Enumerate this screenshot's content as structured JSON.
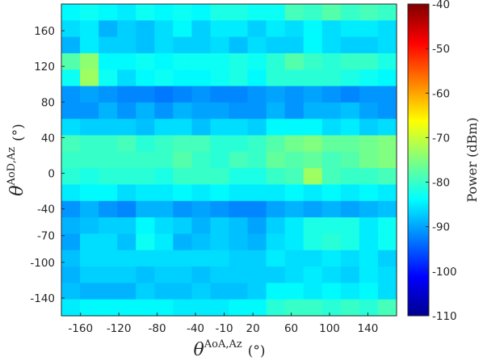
{
  "chart_data": {
    "type": "heatmap",
    "title": "",
    "xlabel": {
      "symbol": "θ",
      "superscript": "AoA,Az",
      "unit": "(°)"
    },
    "ylabel": {
      "symbol": "θ",
      "superscript": "AoD,Az",
      "unit": "(°)"
    },
    "colorbar": {
      "label": "Power (dBm)",
      "range": [
        -110,
        -40
      ],
      "ticks": [
        -40,
        -50,
        -60,
        -70,
        -80,
        -90,
        -100,
        -110
      ],
      "colormap": "jet"
    },
    "xticks": [
      -160,
      -120,
      -80,
      -40,
      -10,
      20,
      60,
      100,
      140
    ],
    "yticks": [
      160,
      120,
      80,
      40,
      0,
      -40,
      -70,
      -100,
      -140
    ],
    "nx": 18,
    "ny": 19,
    "xrange": [
      -180,
      170
    ],
    "yrange": [
      -160,
      190
    ],
    "values": [
      [
        -84,
        -83,
        -84,
        -85,
        -83,
        -84,
        -83,
        -84,
        -82,
        -82,
        -83,
        -83,
        -79,
        -80,
        -78,
        -80,
        -79,
        -80
      ],
      [
        -86,
        -85,
        -89,
        -87,
        -88,
        -86,
        -84,
        -87,
        -85,
        -85,
        -87,
        -85,
        -86,
        -84,
        -86,
        -85,
        -85,
        -86
      ],
      [
        -89,
        -85,
        -87,
        -87,
        -88,
        -86,
        -87,
        -87,
        -86,
        -88,
        -86,
        -87,
        -87,
        -84,
        -86,
        -87,
        -87,
        -86
      ],
      [
        -78,
        -74,
        -84,
        -84,
        -83,
        -84,
        -83,
        -83,
        -83,
        -82,
        -83,
        -81,
        -78,
        -80,
        -81,
        -80,
        -80,
        -82
      ],
      [
        -83,
        -73,
        -83,
        -86,
        -84,
        -83,
        -84,
        -84,
        -83,
        -82,
        -84,
        -81,
        -81,
        -81,
        -81,
        -82,
        -83,
        -84
      ],
      [
        -91,
        -90,
        -91,
        -92,
        -92,
        -93,
        -92,
        -91,
        -92,
        -92,
        -91,
        -90,
        -91,
        -90,
        -91,
        -92,
        -91,
        -91
      ],
      [
        -91,
        -91,
        -89,
        -91,
        -89,
        -91,
        -89,
        -90,
        -90,
        -91,
        -91,
        -89,
        -91,
        -89,
        -89,
        -88,
        -90,
        -91
      ],
      [
        -86,
        -87,
        -87,
        -87,
        -88,
        -86,
        -86,
        -88,
        -86,
        -86,
        -87,
        -84,
        -84,
        -84,
        -86,
        -85,
        -87,
        -86
      ],
      [
        -79,
        -80,
        -80,
        -79,
        -81,
        -80,
        -79,
        -79,
        -81,
        -81,
        -80,
        -78,
        -76,
        -75,
        -77,
        -77,
        -76,
        -75
      ],
      [
        -80,
        -80,
        -80,
        -80,
        -80,
        -80,
        -78,
        -80,
        -81,
        -79,
        -80,
        -77,
        -78,
        -77,
        -79,
        -78,
        -76,
        -75
      ],
      [
        -81,
        -82,
        -81,
        -81,
        -81,
        -82,
        -80,
        -80,
        -80,
        -82,
        -82,
        -80,
        -79,
        -73,
        -79,
        -80,
        -80,
        -79
      ],
      [
        -85,
        -84,
        -84,
        -86,
        -85,
        -85,
        -84,
        -85,
        -84,
        -85,
        -85,
        -85,
        -84,
        -85,
        -84,
        -85,
        -84,
        -85
      ],
      [
        -91,
        -89,
        -91,
        -92,
        -89,
        -89,
        -91,
        -90,
        -91,
        -92,
        -92,
        -90,
        -89,
        -90,
        -89,
        -90,
        -89,
        -88
      ],
      [
        -89,
        -88,
        -87,
        -87,
        -84,
        -86,
        -87,
        -89,
        -87,
        -88,
        -90,
        -87,
        -85,
        -82,
        -82,
        -82,
        -85,
        -83
      ],
      [
        -90,
        -86,
        -86,
        -88,
        -83,
        -85,
        -89,
        -88,
        -87,
        -88,
        -89,
        -86,
        -85,
        -82,
        -81,
        -82,
        -85,
        -83
      ],
      [
        -88,
        -86,
        -86,
        -86,
        -86,
        -86,
        -86,
        -86,
        -86,
        -87,
        -87,
        -85,
        -86,
        -86,
        -85,
        -86,
        -85,
        -87
      ],
      [
        -89,
        -87,
        -87,
        -87,
        -88,
        -87,
        -87,
        -88,
        -87,
        -87,
        -87,
        -87,
        -86,
        -85,
        -86,
        -87,
        -85,
        -86
      ],
      [
        -88,
        -89,
        -89,
        -89,
        -87,
        -88,
        -88,
        -87,
        -88,
        -88,
        -87,
        -84,
        -84,
        -85,
        -84,
        -85,
        -84,
        -86
      ],
      [
        -85,
        -84,
        -84,
        -84,
        -84,
        -84,
        -85,
        -85,
        -85,
        -84,
        -84,
        -81,
        -80,
        -80,
        -81,
        -80,
        -81,
        -79
      ]
    ]
  }
}
